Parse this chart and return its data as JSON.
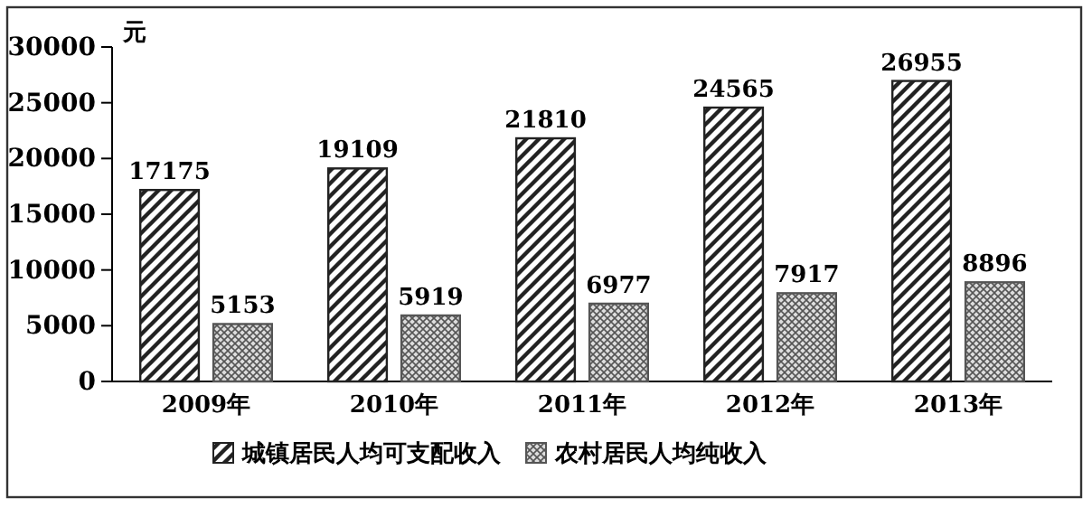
{
  "chart_data": {
    "type": "bar",
    "ylabel": "元",
    "categories": [
      "2009年",
      "2010年",
      "2011年",
      "2012年",
      "2013年"
    ],
    "series": [
      {
        "name": "城镇居民人均可支配收入",
        "color": "#222222",
        "values": [
          17175,
          19109,
          21810,
          24565,
          26955
        ]
      },
      {
        "name": "农村居民人均纯收入",
        "color": "#555555",
        "values": [
          5153,
          5919,
          6977,
          7917,
          8896
        ]
      }
    ],
    "ylim": [
      0,
      30000
    ],
    "yticks": [
      0,
      5000,
      10000,
      15000,
      20000,
      25000,
      30000
    ],
    "data_labels": true,
    "grid": false,
    "legend": "bottom"
  }
}
